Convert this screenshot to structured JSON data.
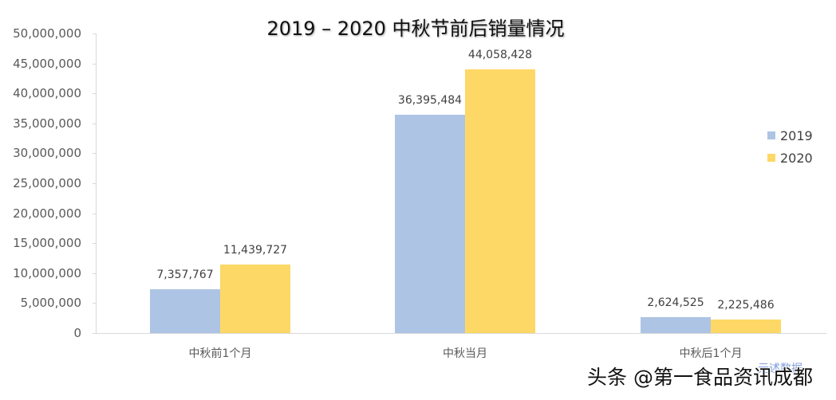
{
  "chart_data": {
    "type": "bar",
    "title": "2019 – 2020 中秋节前后销量情况",
    "categories": [
      "中秋前1个月",
      "中秋当月",
      "中秋后1个月"
    ],
    "series": [
      {
        "name": "2019",
        "color": "#aec4e4",
        "values": [
          7357767,
          36395484,
          2624525
        ],
        "labels": [
          "7,357,767",
          "36,395,484",
          "2,624,525"
        ]
      },
      {
        "name": "2020",
        "color": "#fdd866",
        "values": [
          11439727,
          44058428,
          2225486
        ],
        "labels": [
          "11,439,727",
          "44,058,428",
          "2,225,486"
        ]
      }
    ],
    "xlabel": "",
    "ylabel": "",
    "ylim": [
      0,
      50000000
    ],
    "yticks": [
      "0",
      "5,000,000",
      "10,000,000",
      "15,000,000",
      "20,000,000",
      "25,000,000",
      "30,000,000",
      "35,000,000",
      "40,000,000",
      "45,000,000",
      "50,000,000"
    ],
    "grid": false,
    "legend_position": "right"
  },
  "watermark": {
    "text": "头条 @第一食品资讯成都",
    "logo_text": "元述数据"
  }
}
